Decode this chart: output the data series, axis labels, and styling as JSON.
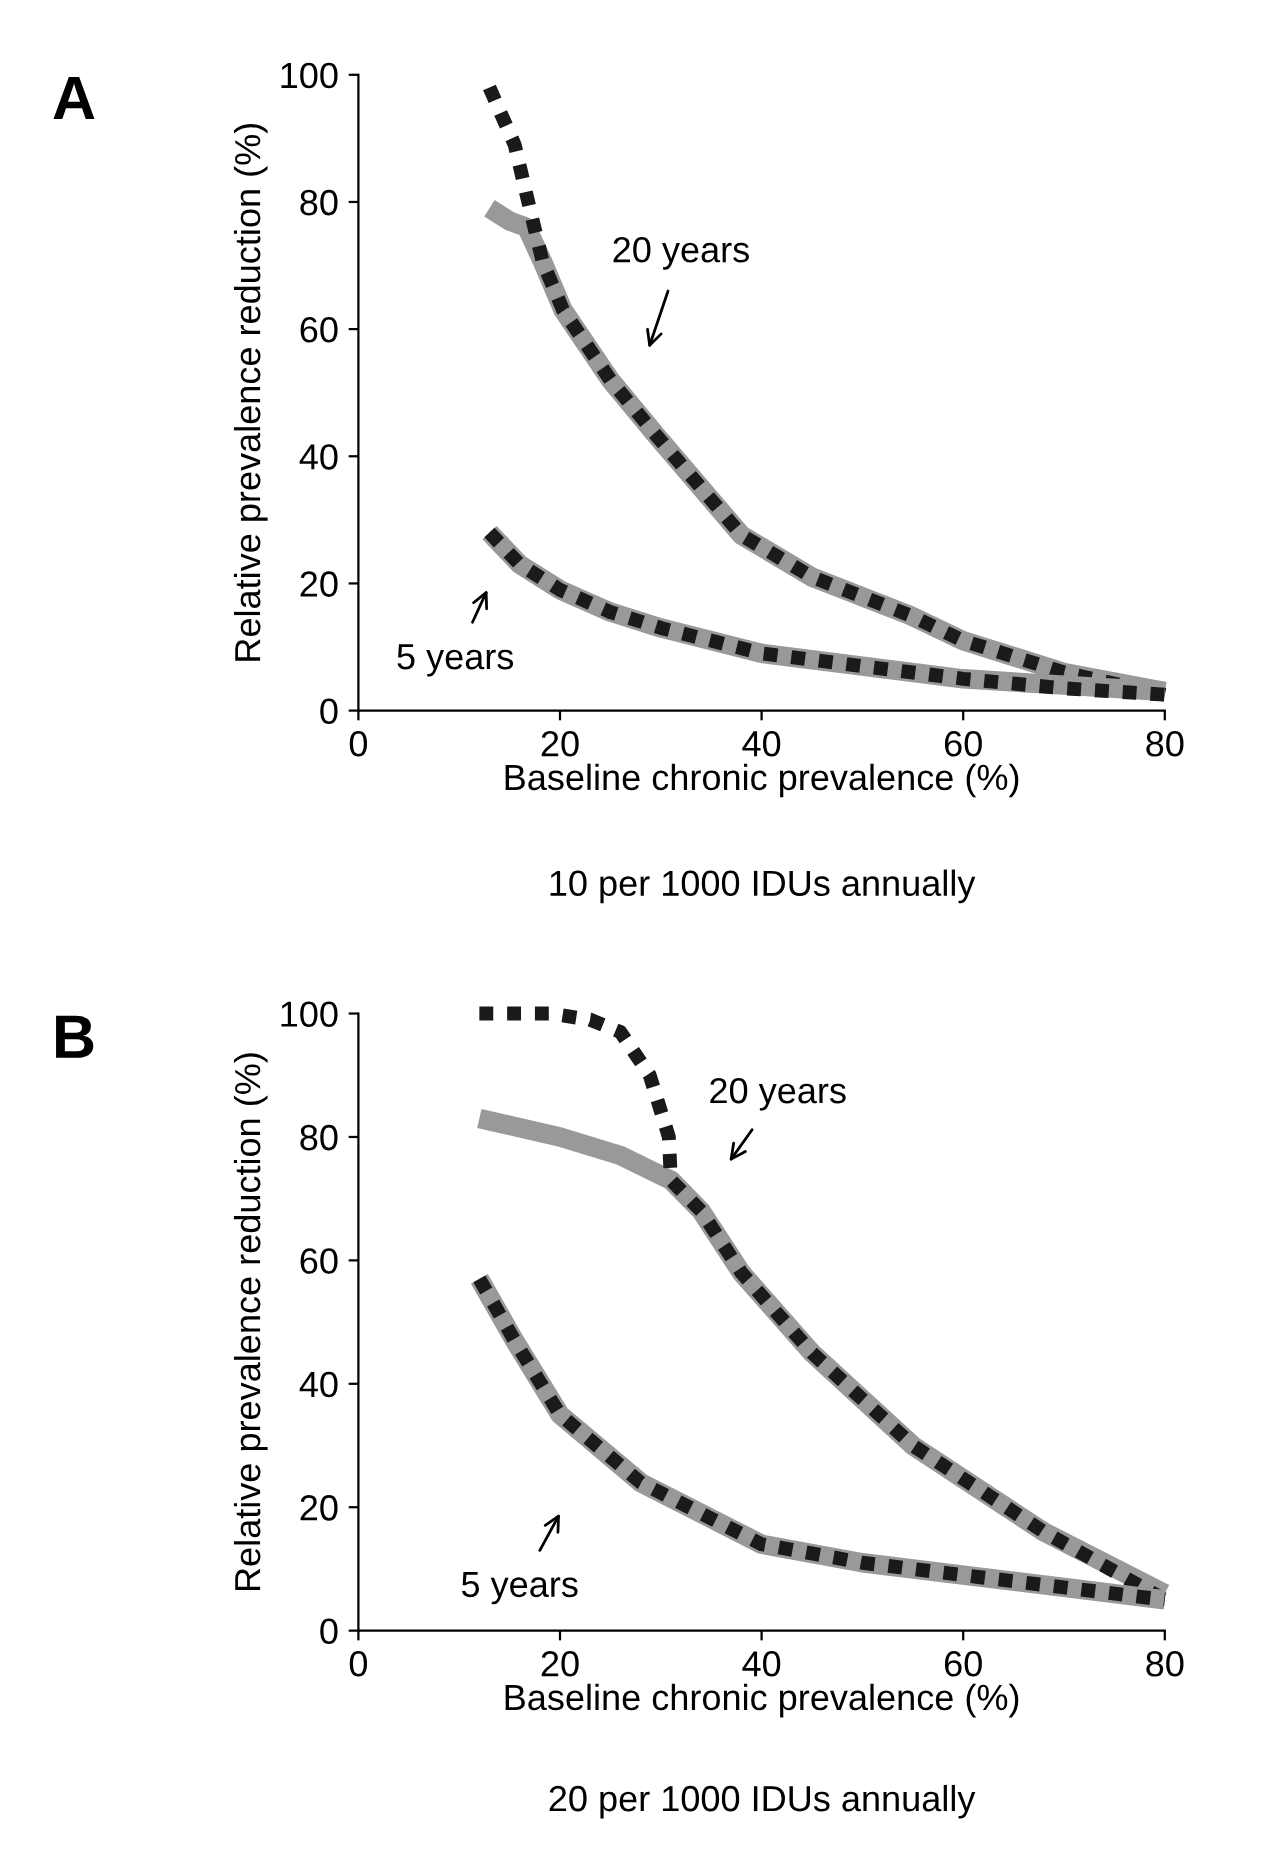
{
  "chart_data": [
    {
      "type": "line",
      "title": "A",
      "xlabel": "Baseline chronic prevalence (%)",
      "ylabel": "Relative prevalence reduction (%)",
      "xlim": [
        0,
        80
      ],
      "ylim": [
        0,
        100
      ],
      "xticks": [
        0,
        20,
        40,
        60,
        80
      ],
      "yticks": [
        0,
        20,
        40,
        60,
        80,
        100
      ],
      "grid": false,
      "legend": false,
      "series": [
        {
          "color": "#999999",
          "line_style": "solid",
          "x": [
            13,
            15,
            16.7,
            18.3,
            20.3,
            25,
            29.7,
            38,
            45,
            54.7,
            60,
            70,
            80
          ],
          "values": [
            79,
            77,
            76,
            70.5,
            63,
            52,
            43,
            27.6,
            21,
            15,
            11,
            6,
            3
          ]
        },
        {
          "color": "#1a1a1a",
          "line_style": "dotted",
          "x": [
            13,
            15.5,
            17,
            18.3,
            20.3,
            25,
            29.7,
            38,
            45,
            54.7,
            60,
            70,
            80
          ],
          "values": [
            98,
            89,
            79,
            70.5,
            63,
            52,
            43,
            27.6,
            21,
            15,
            11,
            6,
            2.5
          ]
        },
        {
          "color": "#999999",
          "line_style": "solid",
          "x": [
            13,
            16,
            20,
            25,
            30,
            40,
            50,
            60,
            70,
            80
          ],
          "values": [
            28,
            23,
            19,
            15.5,
            13,
            9,
            7,
            5,
            4,
            3
          ]
        },
        {
          "color": "#1a1a1a",
          "line_style": "dotted",
          "x": [
            13,
            16,
            20,
            25,
            30,
            40,
            50,
            60,
            70,
            80
          ],
          "values": [
            28,
            23,
            19,
            15.5,
            13,
            9,
            7,
            5,
            3.5,
            2.5
          ]
        }
      ],
      "annotations": [
        "20 years",
        "5 years",
        "10 per 1000 IDUs annually"
      ]
    },
    {
      "type": "line",
      "title": "B",
      "xlabel": "Baseline chronic prevalence (%)",
      "ylabel": "Relative prevalence reduction (%)",
      "xlim": [
        0,
        80
      ],
      "ylim": [
        0,
        100
      ],
      "xticks": [
        0,
        20,
        40,
        60,
        80
      ],
      "yticks": [
        0,
        20,
        40,
        60,
        80,
        100
      ],
      "grid": false,
      "legend": false,
      "series": [
        {
          "color": "#999999",
          "line_style": "solid",
          "x": [
            12,
            20,
            26,
            31,
            34,
            38,
            45,
            55,
            68,
            80
          ],
          "values": [
            83,
            80,
            77,
            73,
            68,
            58,
            45,
            30,
            16,
            6
          ]
        },
        {
          "color": "#1a1a1a",
          "line_style": "dotted",
          "x": [
            12,
            19,
            23,
            26,
            28.9,
            30.8,
            31,
            34,
            38,
            45,
            55,
            68,
            80
          ],
          "values": [
            100,
            100,
            99,
            97,
            90,
            80,
            73,
            68,
            58,
            45,
            30,
            16,
            5
          ]
        },
        {
          "color": "#999999",
          "line_style": "solid",
          "x": [
            12,
            15.6,
            20,
            28,
            40,
            50,
            60,
            70,
            80
          ],
          "values": [
            57,
            46.7,
            35,
            24,
            14,
            11,
            9,
            7,
            5
          ]
        },
        {
          "color": "#1a1a1a",
          "line_style": "dotted",
          "x": [
            12,
            15.6,
            20,
            28,
            40,
            50,
            60,
            70,
            80
          ],
          "values": [
            57,
            46.7,
            35,
            24,
            14,
            11,
            9,
            7,
            5
          ]
        }
      ],
      "annotations": [
        "20 years",
        "5 years",
        "20 per 1000 IDUs annually"
      ]
    }
  ]
}
